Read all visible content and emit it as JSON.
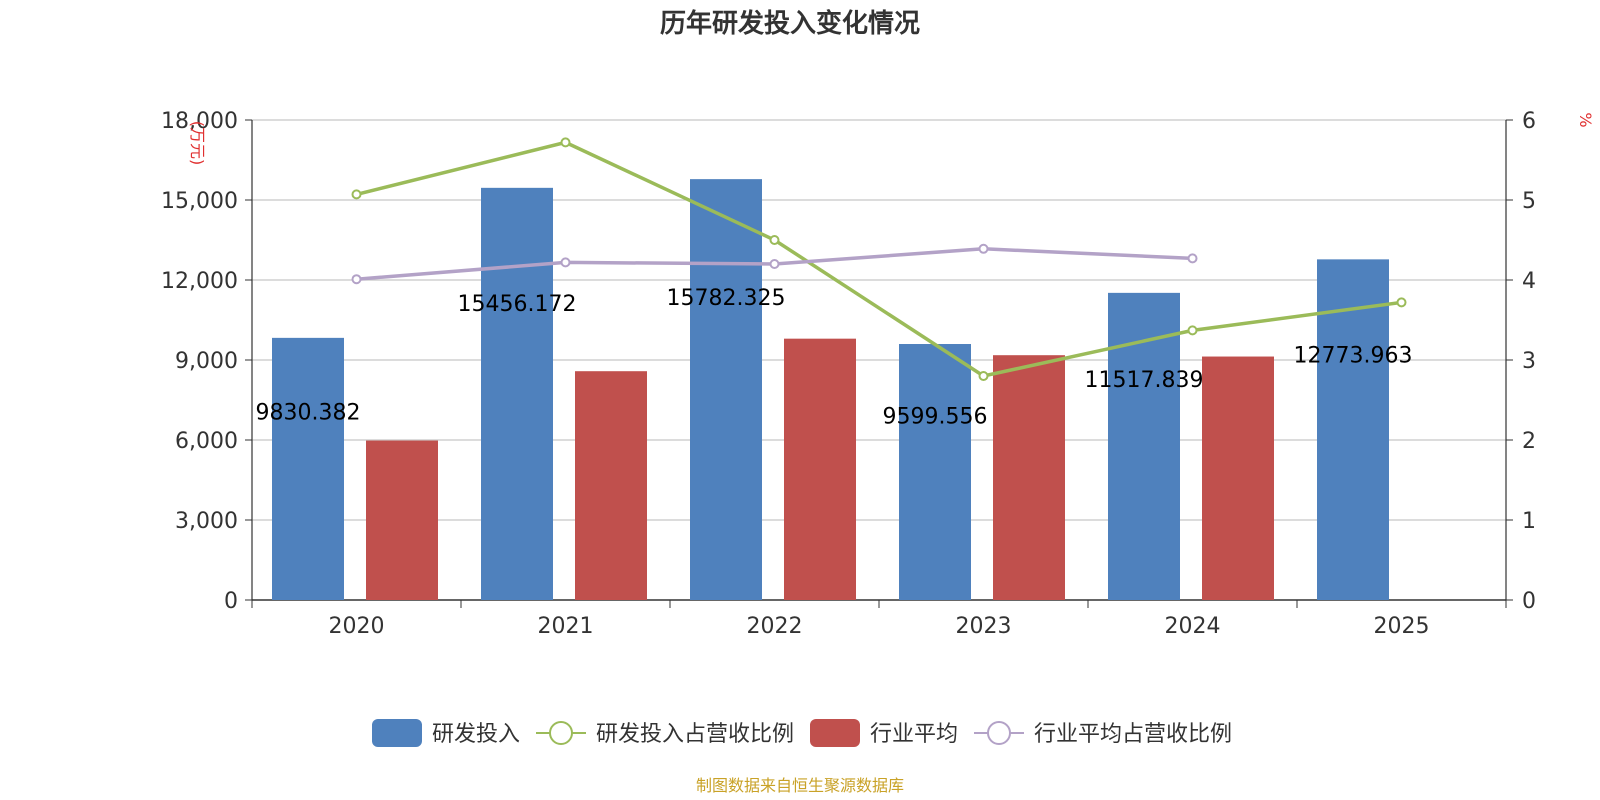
{
  "chart_data": {
    "type": "bar",
    "title": "历年研发投入变化情况",
    "categories": [
      "2020",
      "2021",
      "2022",
      "2023",
      "2024",
      "2025"
    ],
    "y_left": {
      "unit": "(万元)",
      "min": 0,
      "max": 18000,
      "ticks": [
        "0",
        "3,000",
        "6,000",
        "9,000",
        "12,000",
        "15,000",
        "18,000"
      ]
    },
    "y_right": {
      "unit": "%",
      "min": 0,
      "max": 6,
      "ticks": [
        "0",
        "1",
        "2",
        "3",
        "4",
        "5",
        "6"
      ]
    },
    "series": [
      {
        "name": "研发投入",
        "type": "bar",
        "axis": "left",
        "color": "#4f81bd",
        "values": [
          9830.382,
          15456.172,
          15782.325,
          9599.556,
          11517.839,
          12773.963
        ],
        "labels": [
          "9830.382",
          "15456.172",
          "15782.325",
          "9599.556",
          "11517.839",
          "12773.963"
        ]
      },
      {
        "name": "研发投入占营收比例",
        "type": "line",
        "axis": "right",
        "color": "#9bbb59",
        "values": [
          5.07,
          5.72,
          4.5,
          2.8,
          3.37,
          3.72
        ]
      },
      {
        "name": "行业平均",
        "type": "bar",
        "axis": "left",
        "color": "#c0504d",
        "values": [
          5980,
          8580,
          9800,
          9180,
          9130,
          null
        ]
      },
      {
        "name": "行业平均占营收比例",
        "type": "line",
        "axis": "right",
        "color": "#b3a2c7",
        "values": [
          4.01,
          4.22,
          4.2,
          4.39,
          4.27,
          null
        ]
      }
    ],
    "legend": "bottom-center"
  },
  "source": "制图数据来自恒生聚源数据库"
}
